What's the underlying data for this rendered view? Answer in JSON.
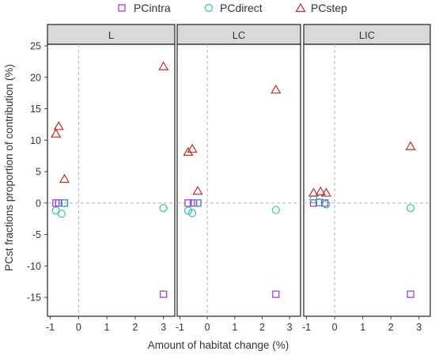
{
  "chart_data": {
    "type": "scatter",
    "ylabel": "PCst fractions proportion of contribution (%)",
    "xlabel": "Amount of habitat change (%)",
    "ylim": [
      -17,
      25
    ],
    "y_ticks": [
      -15,
      -10,
      -5,
      0,
      5,
      10,
      15,
      20,
      25
    ],
    "grid": false,
    "reference_lines": {
      "x": 0,
      "y": 0
    },
    "legend": {
      "position": "top",
      "entries": [
        {
          "name": "PCintra",
          "marker": "square",
          "color": "#9b30d9"
        },
        {
          "name": "PCdirect",
          "marker": "circle",
          "color": "#2ec4a6"
        },
        {
          "name": "PCstep",
          "marker": "triangle",
          "color": "#c62828"
        }
      ]
    },
    "panels": [
      {
        "title": "L",
        "xlim": [
          -1.1,
          3.4
        ],
        "x_ticks": [
          -1,
          0,
          1,
          2,
          3
        ],
        "series": [
          {
            "name": "PCintra",
            "points": [
              [
                -0.8,
                0.0
              ],
              [
                -0.7,
                0.0
              ],
              [
                -0.5,
                0.0
              ],
              [
                3.0,
                -14.5
              ]
            ]
          },
          {
            "name": "PCdirect",
            "points": [
              [
                -0.8,
                -1.2
              ],
              [
                -0.6,
                -1.7
              ],
              [
                -0.5,
                0.0
              ],
              [
                3.0,
                -0.8
              ]
            ]
          },
          {
            "name": "PCstep",
            "points": [
              [
                -0.8,
                11.0
              ],
              [
                -0.7,
                12.2
              ],
              [
                -0.5,
                3.8
              ],
              [
                3.0,
                21.7
              ]
            ]
          }
        ]
      },
      {
        "title": "LC",
        "xlim": [
          -1.1,
          3.4
        ],
        "x_ticks": [
          -1,
          0,
          1,
          2,
          3
        ],
        "series": [
          {
            "name": "PCintra",
            "points": [
              [
                -0.7,
                0.0
              ],
              [
                -0.5,
                0.0
              ],
              [
                -0.35,
                0.0
              ],
              [
                2.5,
                -14.5
              ]
            ]
          },
          {
            "name": "PCdirect",
            "points": [
              [
                -0.7,
                -1.2
              ],
              [
                -0.55,
                -1.6
              ],
              [
                -0.35,
                0.0
              ],
              [
                2.5,
                -1.1
              ]
            ]
          },
          {
            "name": "PCstep",
            "points": [
              [
                -0.7,
                8.1
              ],
              [
                -0.55,
                8.6
              ],
              [
                -0.35,
                1.9
              ],
              [
                2.5,
                18.0
              ]
            ]
          }
        ]
      },
      {
        "title": "LIC",
        "xlim": [
          -1.1,
          3.4
        ],
        "x_ticks": [
          -1,
          0,
          1,
          2,
          3
        ],
        "series": [
          {
            "name": "PCintra",
            "points": [
              [
                -0.75,
                0.0
              ],
              [
                -0.55,
                0.1
              ],
              [
                -0.35,
                0.0
              ],
              [
                2.7,
                -14.5
              ]
            ]
          },
          {
            "name": "PCdirect",
            "points": [
              [
                -0.75,
                0.6
              ],
              [
                -0.55,
                0.1
              ],
              [
                -0.3,
                -0.2
              ],
              [
                2.7,
                -0.8
              ]
            ]
          },
          {
            "name": "PCstep",
            "points": [
              [
                -0.75,
                1.6
              ],
              [
                -0.5,
                1.8
              ],
              [
                -0.3,
                1.6
              ],
              [
                2.7,
                9.0
              ]
            ]
          }
        ]
      }
    ]
  }
}
